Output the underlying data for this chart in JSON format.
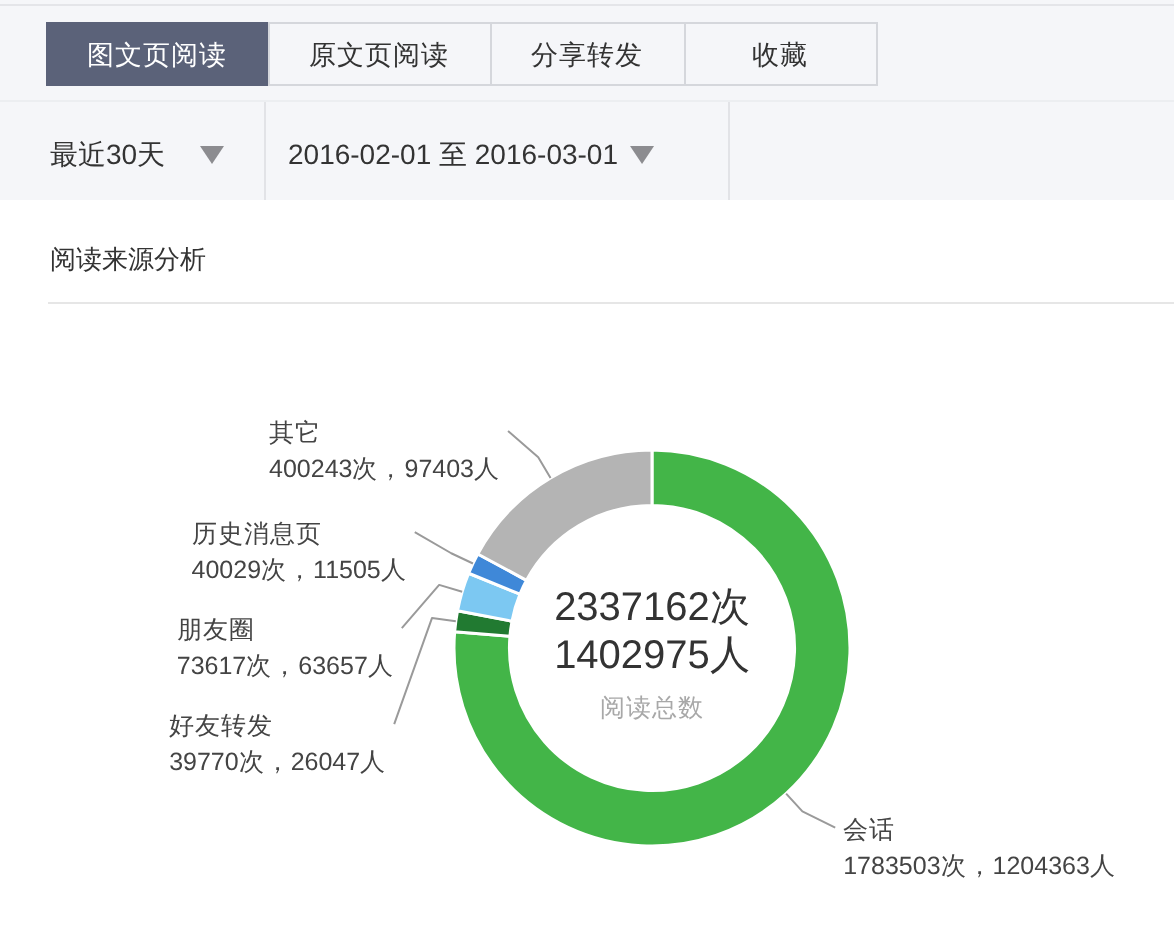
{
  "chart_data": {
    "type": "donut",
    "title": "阅读来源分析",
    "categories": [
      "会话",
      "好友转发",
      "朋友圈",
      "历史消息页",
      "其它"
    ],
    "values": [
      1783503,
      39770,
      73617,
      40029,
      400243
    ],
    "colors": [
      "#43b548",
      "#217a31",
      "#7cc8f2",
      "#3f88d8",
      "#b4b4b4"
    ],
    "value_labels": [
      "1783503次，1204363人",
      "39770次，26047人",
      "73617次，63657人",
      "40029次，11505人",
      "400243次，97403人"
    ],
    "annotations": [
      "图文页阅读",
      "原文页阅读",
      "分享转发",
      "收藏",
      "最近30天",
      "2016-02-01 至 2016-03-01",
      "2337162次",
      "1402975人",
      "阅读总数"
    ]
  }
}
